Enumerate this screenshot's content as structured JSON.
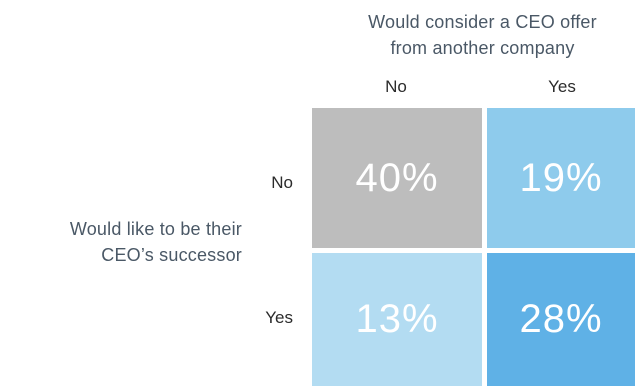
{
  "chart_data": {
    "type": "heatmap",
    "column_axis_title": "Would consider a CEO offer from another company",
    "row_axis_title": "Would like to be their CEO’s successor",
    "columns": [
      "No",
      "Yes"
    ],
    "rows": [
      "No",
      "Yes"
    ],
    "values": [
      [
        "40%",
        "19%"
      ],
      [
        "13%",
        "28%"
      ]
    ],
    "cell_colors": [
      [
        "#bdbdbd",
        "#8ecbec"
      ],
      [
        "#b3dcf2",
        "#5fb1e6"
      ]
    ]
  },
  "labels": {
    "column_title_line1": "Would consider a CEO offer",
    "column_title_line2": "from another company",
    "row_title_line1": "Would like to be their",
    "row_title_line2": "CEO’s successor"
  }
}
